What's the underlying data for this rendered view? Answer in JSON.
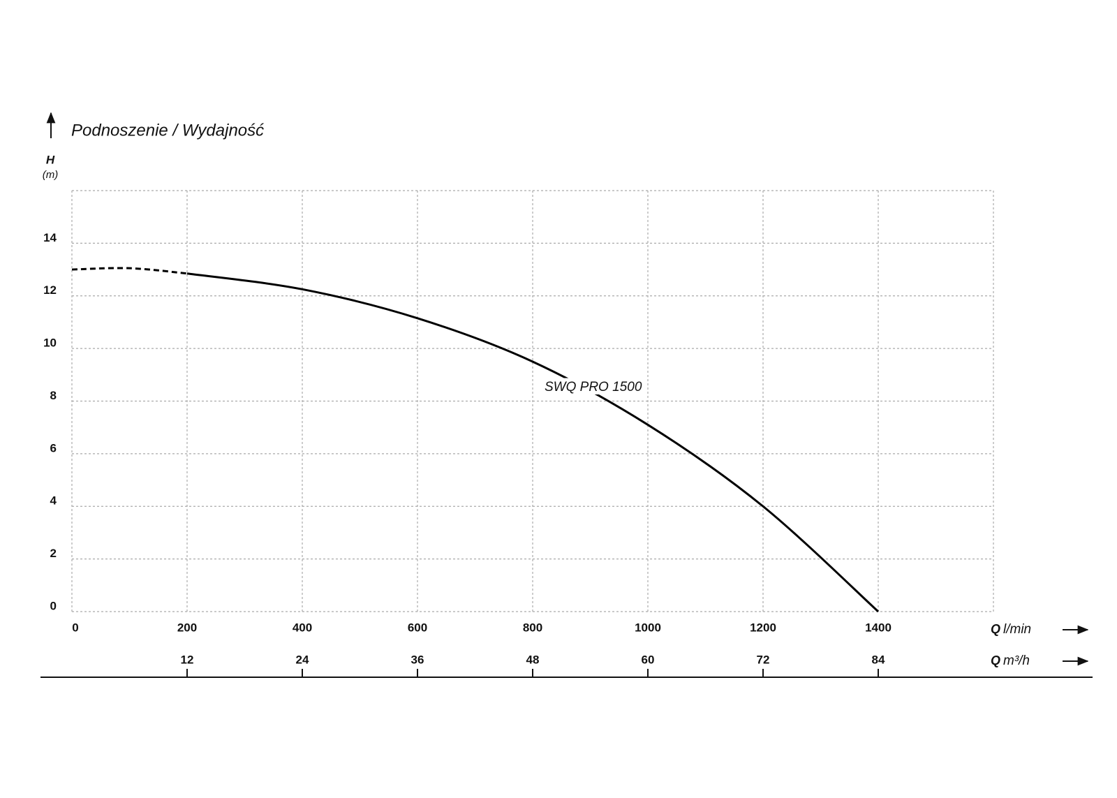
{
  "chart_data": {
    "type": "line",
    "title": "Podnoszenie / Wydajność",
    "y_label": "H",
    "y_unit": "(m)",
    "x_label": {
      "symbol": "Q",
      "unit": "l/min"
    },
    "x2_label": {
      "symbol": "Q",
      "unit": "m³/h"
    },
    "xlim": [
      0,
      1600
    ],
    "xticks": [
      0,
      200,
      400,
      600,
      800,
      1000,
      1200,
      1400
    ],
    "x2lim": [
      0,
      96
    ],
    "x2ticks": [
      12,
      24,
      36,
      48,
      60,
      72,
      84
    ],
    "ylim": [
      0,
      16
    ],
    "yticks": [
      0,
      2,
      4,
      6,
      8,
      10,
      12,
      14
    ],
    "grid": true,
    "series": [
      {
        "name": "SWQ PRO 1500",
        "color": "#000000",
        "dashed": false,
        "x": [
          200,
          400,
          600,
          800,
          1000,
          1200,
          1400
        ],
        "values": [
          12.85,
          12.25,
          11.15,
          9.5,
          7.1,
          4.0,
          0
        ]
      },
      {
        "color": "#000000",
        "dashed": true,
        "x": [
          0,
          100,
          200
        ],
        "values": [
          13.0,
          13.05,
          12.85
        ]
      }
    ]
  }
}
